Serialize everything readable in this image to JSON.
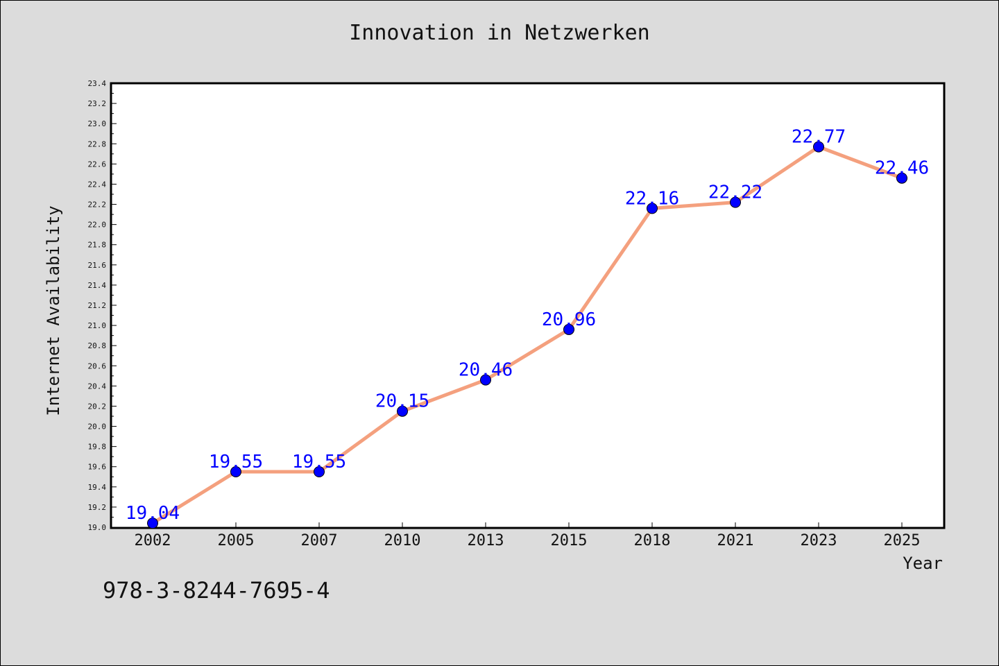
{
  "chart_data": {
    "type": "line",
    "title": "Innovation in Netzwerken",
    "xlabel": "Year",
    "ylabel": "Internet Availability",
    "categories": [
      "2002",
      "2005",
      "2007",
      "2010",
      "2013",
      "2015",
      "2018",
      "2021",
      "2023",
      "2025"
    ],
    "series": [
      {
        "values": [
          19.04,
          19.55,
          19.55,
          20.15,
          20.46,
          20.96,
          22.16,
          22.22,
          22.77,
          22.46
        ],
        "labels": [
          "19.04",
          "19.55",
          "19.55",
          "20.15",
          "20.46",
          "20.96",
          "22.16",
          "22.22",
          "22.77",
          "22.46"
        ],
        "line_color": "#f4a07e",
        "marker_color": "#0000ff",
        "label_color": "#0000ff"
      }
    ],
    "ylim": [
      19.0,
      23.4
    ],
    "yticks": [
      "19.0",
      "19.2",
      "19.4",
      "19.6",
      "19.8",
      "20.0",
      "20.2",
      "20.4",
      "20.6",
      "20.8",
      "21.0",
      "21.2",
      "21.4",
      "21.6",
      "21.8",
      "22.0",
      "22.2",
      "22.4",
      "22.6",
      "22.8",
      "23.0",
      "23.2",
      "23.4"
    ],
    "grid": false,
    "legend": "none"
  },
  "footer": {
    "isbn": "978-3-8244-7695-4"
  },
  "colors": {
    "background": "#dcdcdc",
    "plot_background": "#ffffff"
  }
}
